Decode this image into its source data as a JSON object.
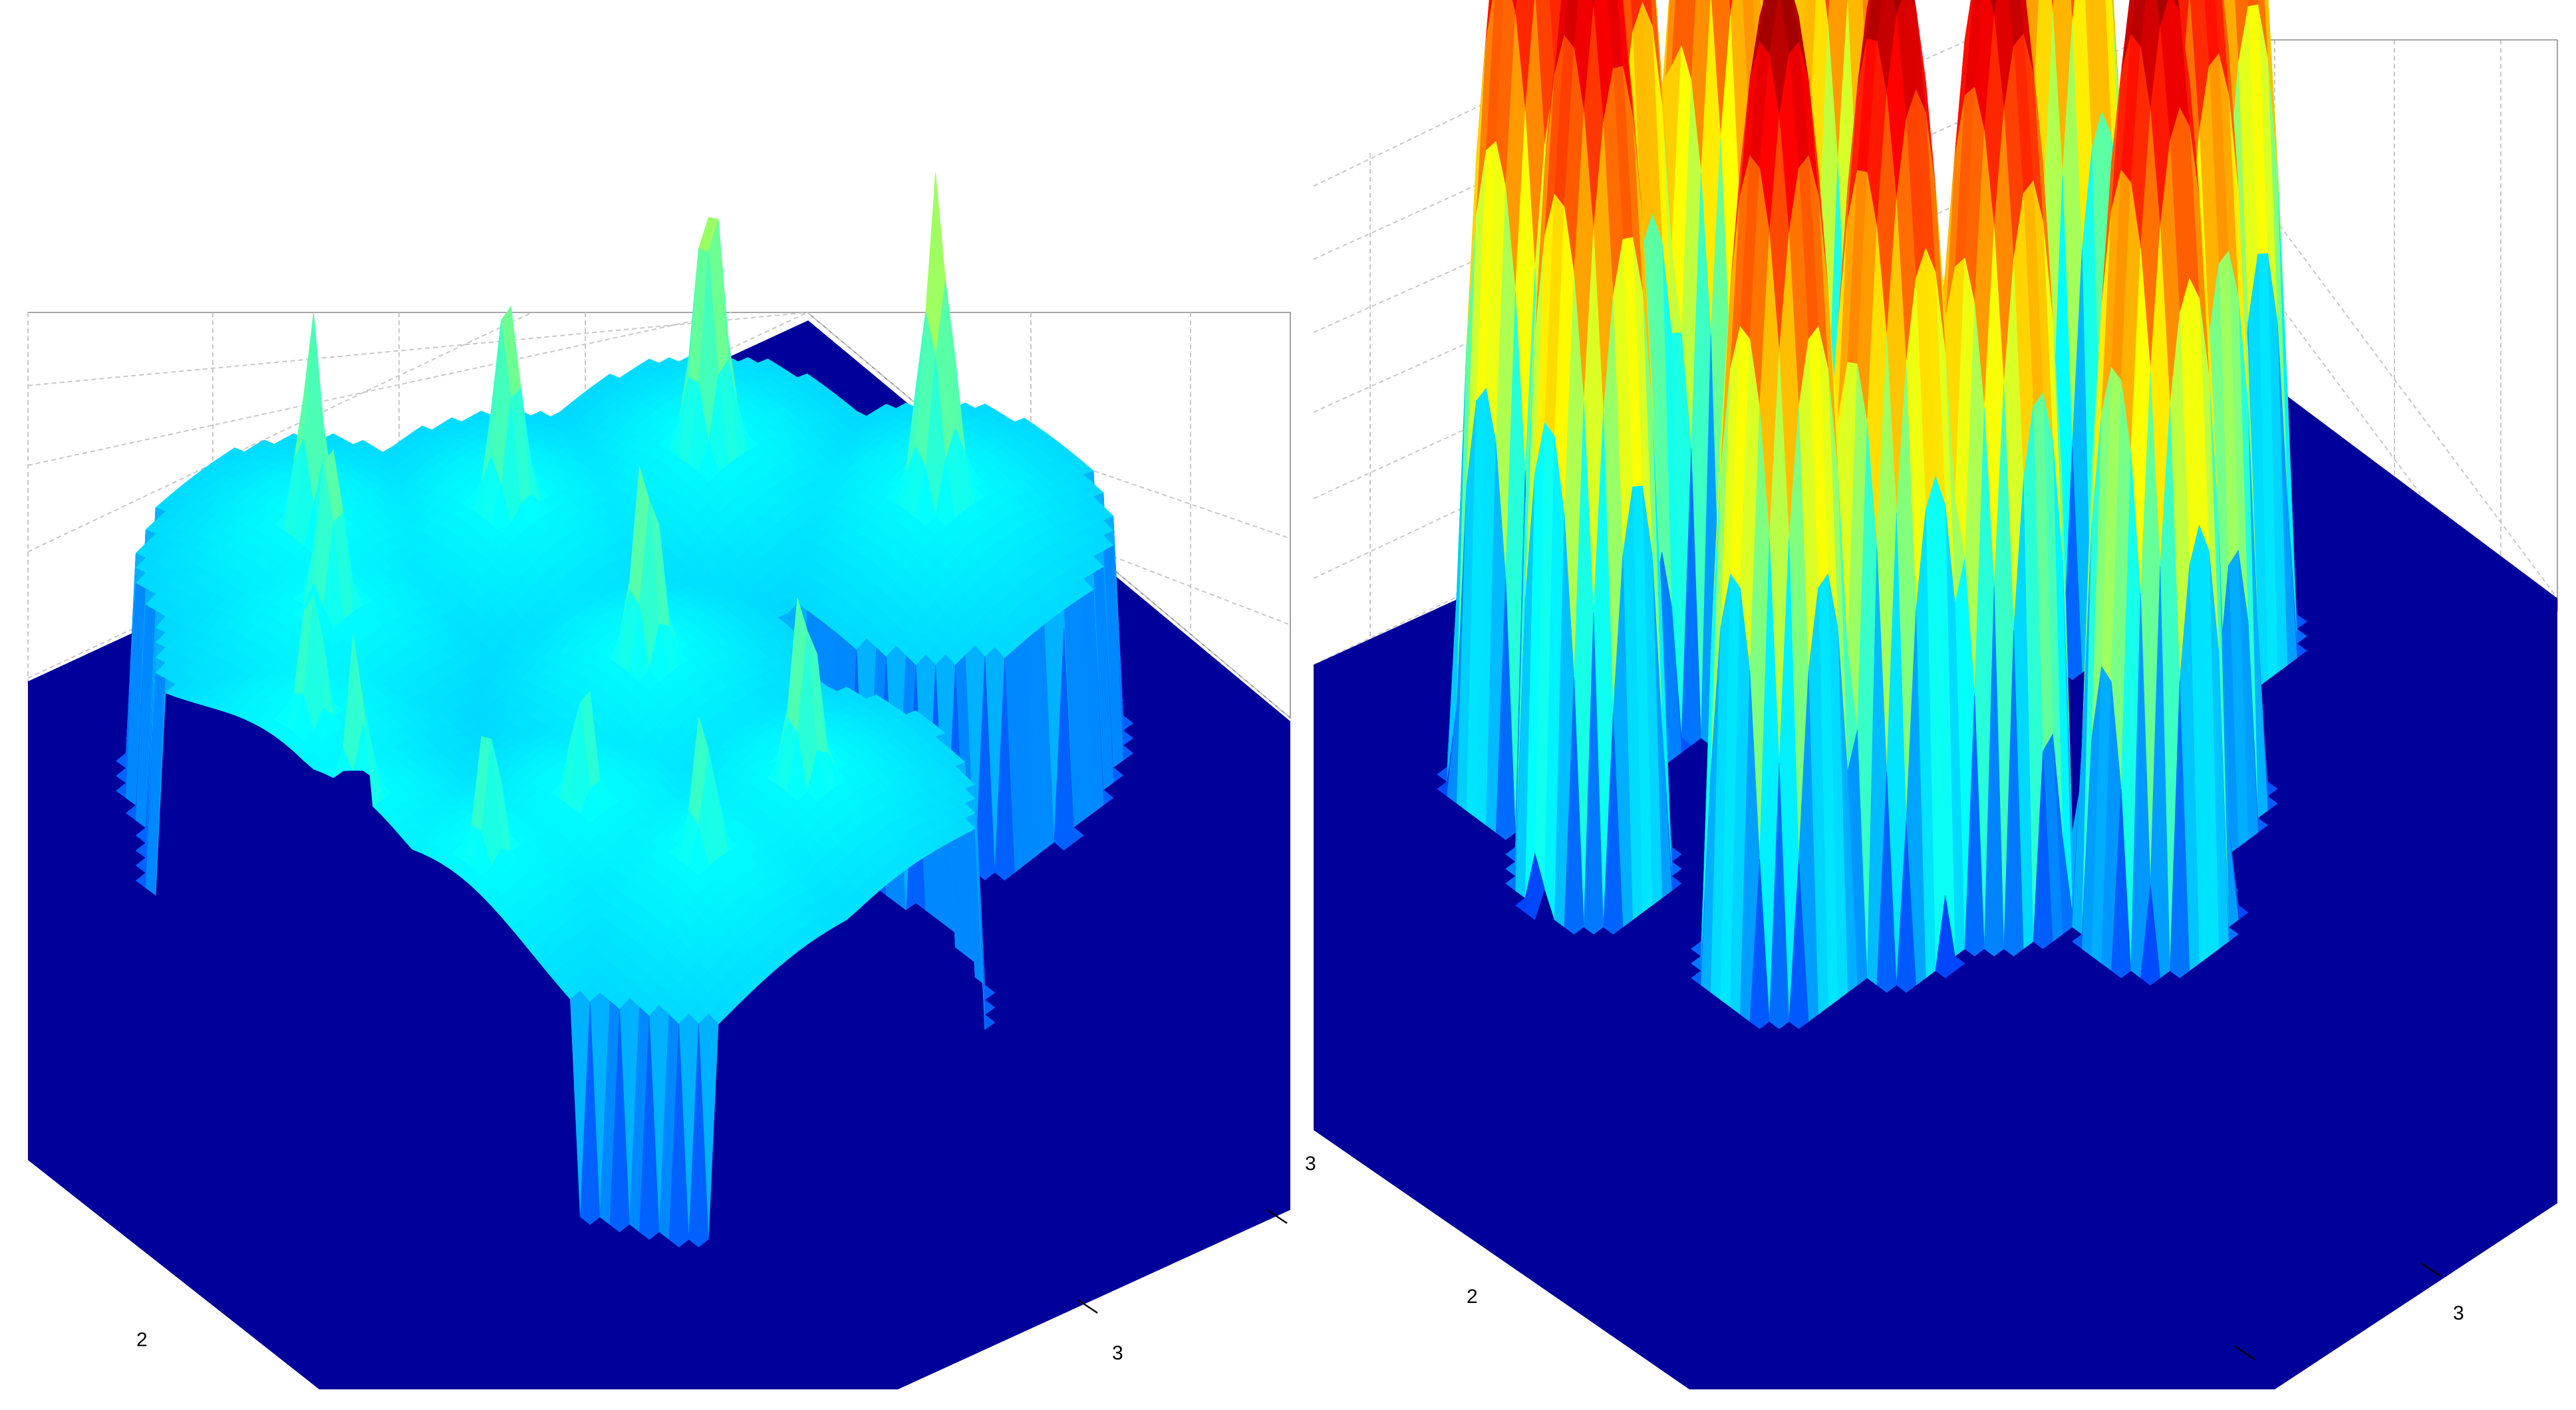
{
  "chart_data": [
    {
      "type": "surface",
      "colormap": "jet",
      "grid": true,
      "x_ticks": [
        "2"
      ],
      "y_ticks": [
        "3"
      ],
      "z_range_fraction_of_colormap": [
        0,
        0.45
      ],
      "plateau_level": 0.35,
      "peaks": [
        {
          "x": 2.43,
          "y": 2.35,
          "height": 0.72
        },
        {
          "x": 2.66,
          "y": 2.22,
          "height": 0.75
        },
        {
          "x": 2.33,
          "y": 2.57,
          "height": 0.62
        },
        {
          "x": 2.6,
          "y": 2.62,
          "height": 0.62
        },
        {
          "x": 2.85,
          "y": 2.62,
          "height": 0.6
        },
        {
          "x": 2.2,
          "y": 2.75,
          "height": 0.58
        },
        {
          "x": 2.3,
          "y": 2.82,
          "height": 0.56
        },
        {
          "x": 2.4,
          "y": 2.95,
          "height": 0.5
        },
        {
          "x": 2.52,
          "y": 3.0,
          "height": 0.52
        },
        {
          "x": 2.68,
          "y": 2.95,
          "height": 0.5
        },
        {
          "x": 2.7,
          "y": 2.82,
          "height": 0.48
        },
        {
          "x": 2.85,
          "y": 2.78,
          "height": 0.5
        }
      ]
    },
    {
      "type": "surface",
      "colormap": "jet",
      "grid": true,
      "x_ticks": [
        "2",
        "3"
      ],
      "y_ticks": [
        "3"
      ],
      "z_range_fraction_of_colormap": [
        0,
        1
      ],
      "peaks": [
        {
          "x": 2.45,
          "y": 2.25,
          "height": 1.0
        },
        {
          "x": 2.6,
          "y": 2.15,
          "height": 1.0
        },
        {
          "x": 2.3,
          "y": 2.45,
          "height": 1.0
        },
        {
          "x": 2.75,
          "y": 2.35,
          "height": 1.0
        },
        {
          "x": 2.25,
          "y": 2.6,
          "height": 1.0
        },
        {
          "x": 2.85,
          "y": 2.5,
          "height": 1.0
        },
        {
          "x": 2.2,
          "y": 2.72,
          "height": 1.0
        },
        {
          "x": 2.7,
          "y": 2.6,
          "height": 1.0
        },
        {
          "x": 2.2,
          "y": 2.85,
          "height": 1.0
        },
        {
          "x": 2.35,
          "y": 2.9,
          "height": 1.0
        },
        {
          "x": 2.6,
          "y": 2.85,
          "height": 1.0
        },
        {
          "x": 2.65,
          "y": 2.72,
          "height": 1.0
        }
      ]
    }
  ]
}
